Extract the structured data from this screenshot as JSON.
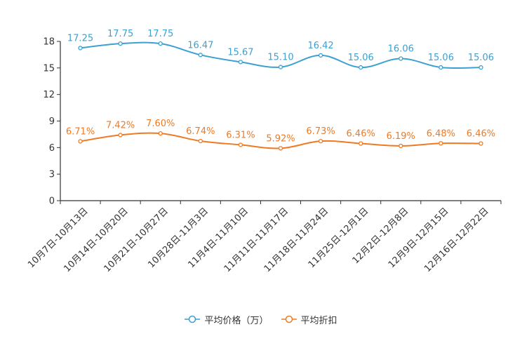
{
  "chart_data": {
    "type": "line",
    "categories": [
      "10月7日-10月13日",
      "10月14日-10月20日",
      "10月21日-10月27日",
      "10月28日-11月3日",
      "11月4日-11月10日",
      "11月11日-11月17日",
      "11月18日-11月24日",
      "11月25日-12月1日",
      "12月2日-12月8日",
      "12月9日-12月15日",
      "12月16日-12月22日"
    ],
    "series": [
      {
        "name": "平均价格（万）",
        "color": "#3ca0d0",
        "values": [
          17.25,
          17.75,
          17.75,
          16.47,
          15.67,
          15.1,
          16.42,
          15.06,
          16.06,
          15.06,
          15.06
        ],
        "labels": [
          "17.25",
          "17.75",
          "17.75",
          "16.47",
          "15.67",
          "15.10",
          "16.42",
          "15.06",
          "16.06",
          "15.06",
          "15.06"
        ]
      },
      {
        "name": "平均折扣",
        "color": "#f07a22",
        "values": [
          6.71,
          7.42,
          7.6,
          6.74,
          6.31,
          5.92,
          6.73,
          6.46,
          6.19,
          6.48,
          6.46
        ],
        "labels": [
          "6.71%",
          "7.42%",
          "7.60%",
          "6.74%",
          "6.31%",
          "5.92%",
          "6.73%",
          "6.46%",
          "6.19%",
          "6.48%",
          "6.46%"
        ]
      }
    ],
    "yticks": [
      0,
      3,
      6,
      9,
      12,
      15,
      18
    ],
    "ylim": [
      0,
      18
    ],
    "title": "",
    "xlabel": "",
    "ylabel": "",
    "legend_position": "bottom-center"
  }
}
